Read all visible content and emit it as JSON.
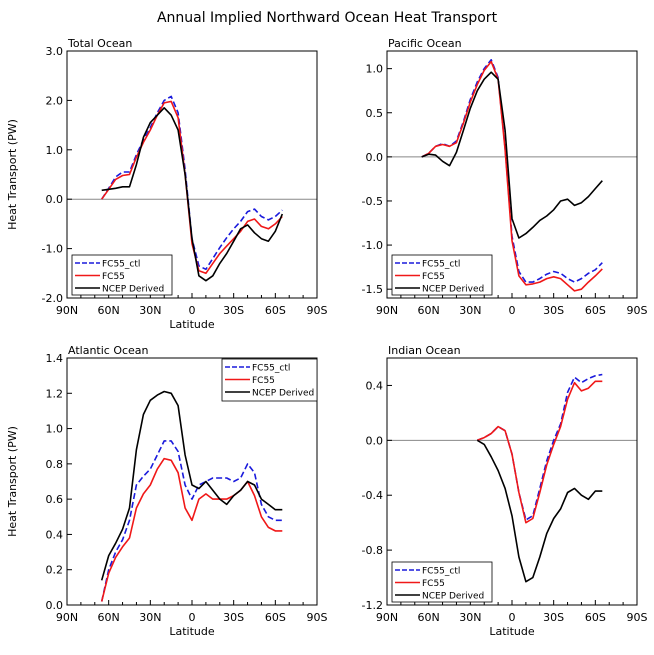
{
  "figure_title": "Annual Implied Northward Ocean Heat Transport",
  "colors": {
    "ctl": "#1a1adc",
    "fc55": "#f01818",
    "ncep": "#000000",
    "zero": "#888888"
  },
  "chart_data": [
    {
      "type": "line",
      "title": "Total Ocean",
      "xlabel": "Latitude",
      "ylabel": "Heat Transport (PW)",
      "xlim": [
        90,
        -90
      ],
      "ylim": [
        -2.0,
        3.0
      ],
      "xticks": [
        90,
        60,
        30,
        0,
        -30,
        -60,
        -90
      ],
      "xtick_labels": [
        "90N",
        "60N",
        "30N",
        "0",
        "30S",
        "60S",
        "90S"
      ],
      "yticks": [
        -2.0,
        -1.0,
        0.0,
        1.0,
        2.0,
        3.0
      ],
      "ytick_labels": [
        "-2.0",
        "-1.0",
        "0.0",
        "1.0",
        "2.0",
        "3.0"
      ],
      "legend_labels": [
        "FC55_ctl",
        "FC55",
        "NCEP Derived"
      ],
      "legend_location": "bottom-left",
      "series": [
        {
          "name": "FC55_ctl",
          "style": "dashed",
          "color": "#1a1adc",
          "x": [
            65,
            60,
            55,
            50,
            45,
            40,
            35,
            30,
            25,
            20,
            15,
            10,
            5,
            0,
            -5,
            -10,
            -15,
            -20,
            -25,
            -30,
            -35,
            -40,
            -45,
            -50,
            -55,
            -60,
            -65
          ],
          "y": [
            0.0,
            0.22,
            0.45,
            0.55,
            0.55,
            0.9,
            1.2,
            1.45,
            1.75,
            2.0,
            2.08,
            1.75,
            0.6,
            -0.8,
            -1.35,
            -1.42,
            -1.2,
            -0.98,
            -0.78,
            -0.6,
            -0.45,
            -0.25,
            -0.2,
            -0.35,
            -0.42,
            -0.35,
            -0.22
          ]
        },
        {
          "name": "FC55",
          "style": "solid",
          "color": "#f01818",
          "x": [
            65,
            60,
            55,
            50,
            45,
            40,
            35,
            30,
            25,
            20,
            15,
            10,
            5,
            0,
            -5,
            -10,
            -15,
            -20,
            -25,
            -30,
            -35,
            -40,
            -45,
            -50,
            -55,
            -60,
            -65
          ],
          "y": [
            0.0,
            0.2,
            0.4,
            0.48,
            0.5,
            0.85,
            1.15,
            1.4,
            1.7,
            1.95,
            1.98,
            1.65,
            0.5,
            -0.9,
            -1.45,
            -1.5,
            -1.3,
            -1.1,
            -0.95,
            -0.8,
            -0.65,
            -0.45,
            -0.4,
            -0.55,
            -0.6,
            -0.5,
            -0.35
          ]
        },
        {
          "name": "NCEP Derived",
          "style": "solid",
          "color": "#000000",
          "x": [
            65,
            60,
            55,
            50,
            45,
            40,
            35,
            30,
            25,
            20,
            15,
            10,
            5,
            0,
            -5,
            -10,
            -15,
            -20,
            -25,
            -30,
            -35,
            -40,
            -45,
            -50,
            -55,
            -60,
            -65
          ],
          "y": [
            0.18,
            0.2,
            0.22,
            0.25,
            0.25,
            0.7,
            1.25,
            1.55,
            1.7,
            1.85,
            1.7,
            1.4,
            0.5,
            -0.8,
            -1.55,
            -1.65,
            -1.55,
            -1.3,
            -1.1,
            -0.85,
            -0.6,
            -0.52,
            -0.68,
            -0.8,
            -0.85,
            -0.65,
            -0.3
          ]
        }
      ]
    },
    {
      "type": "line",
      "title": "Pacific Ocean",
      "xlabel": "",
      "ylabel": "",
      "xlim": [
        90,
        -90
      ],
      "ylim": [
        -1.6,
        1.2
      ],
      "xticks": [
        90,
        60,
        30,
        0,
        -30,
        -60,
        -90
      ],
      "xtick_labels": [
        "90N",
        "60N",
        "30N",
        "0",
        "30S",
        "60S",
        "90S"
      ],
      "yticks": [
        -1.5,
        -1.0,
        -0.5,
        0.0,
        0.5,
        1.0
      ],
      "ytick_labels": [
        "-1.5",
        "-1.0",
        "-0.5",
        "0.0",
        "0.5",
        "1.0"
      ],
      "legend_labels": [
        "FC55_ctl",
        "FC55",
        "NCEP Derived"
      ],
      "legend_location": "bottom-left",
      "series": [
        {
          "name": "FC55_ctl",
          "style": "dashed",
          "color": "#1a1adc",
          "x": [
            65,
            60,
            55,
            50,
            45,
            40,
            35,
            30,
            25,
            20,
            15,
            10,
            5,
            0,
            -5,
            -10,
            -15,
            -20,
            -25,
            -30,
            -35,
            -40,
            -45,
            -50,
            -55,
            -60,
            -65
          ],
          "y": [
            0.0,
            0.04,
            0.12,
            0.15,
            0.12,
            0.18,
            0.4,
            0.65,
            0.85,
            1.0,
            1.1,
            0.9,
            0.1,
            -0.9,
            -1.3,
            -1.42,
            -1.42,
            -1.38,
            -1.33,
            -1.3,
            -1.32,
            -1.38,
            -1.42,
            -1.38,
            -1.32,
            -1.28,
            -1.2
          ]
        },
        {
          "name": "FC55",
          "style": "solid",
          "color": "#f01818",
          "x": [
            65,
            60,
            55,
            50,
            45,
            40,
            35,
            30,
            25,
            20,
            15,
            10,
            5,
            0,
            -5,
            -10,
            -15,
            -20,
            -25,
            -30,
            -35,
            -40,
            -45,
            -50,
            -55,
            -60,
            -65
          ],
          "y": [
            0.0,
            0.04,
            0.12,
            0.14,
            0.12,
            0.16,
            0.38,
            0.62,
            0.82,
            0.98,
            1.08,
            0.88,
            0.08,
            -0.95,
            -1.35,
            -1.45,
            -1.44,
            -1.42,
            -1.38,
            -1.36,
            -1.38,
            -1.45,
            -1.52,
            -1.5,
            -1.42,
            -1.35,
            -1.27
          ]
        },
        {
          "name": "NCEP Derived",
          "style": "solid",
          "color": "#000000",
          "x": [
            65,
            60,
            55,
            50,
            45,
            40,
            35,
            30,
            25,
            20,
            15,
            10,
            5,
            0,
            -5,
            -10,
            -15,
            -20,
            -25,
            -30,
            -35,
            -40,
            -45,
            -50,
            -55,
            -60,
            -65
          ],
          "y": [
            0.0,
            0.03,
            0.02,
            -0.05,
            -0.1,
            0.05,
            0.3,
            0.55,
            0.75,
            0.88,
            0.96,
            0.88,
            0.3,
            -0.7,
            -0.92,
            -0.87,
            -0.8,
            -0.72,
            -0.67,
            -0.6,
            -0.5,
            -0.48,
            -0.55,
            -0.52,
            -0.45,
            -0.36,
            -0.27
          ]
        }
      ]
    },
    {
      "type": "line",
      "title": "Atlantic Ocean",
      "xlabel": "Latitude",
      "ylabel": "Heat Transport (PW)",
      "xlim": [
        90,
        -90
      ],
      "ylim": [
        0.0,
        1.4
      ],
      "xticks": [
        90,
        60,
        30,
        0,
        -30,
        -60,
        -90
      ],
      "xtick_labels": [
        "90N",
        "60N",
        "30N",
        "0",
        "30S",
        "60S",
        "90S"
      ],
      "yticks": [
        0.0,
        0.2,
        0.4,
        0.6,
        0.8,
        1.0,
        1.2,
        1.4
      ],
      "ytick_labels": [
        "0.0",
        "0.2",
        "0.4",
        "0.6",
        "0.8",
        "1.0",
        "1.2",
        "1.4"
      ],
      "legend_labels": [
        "FC55_ctl",
        "FC55",
        "NCEP Derived"
      ],
      "legend_location": "top-right",
      "series": [
        {
          "name": "FC55_ctl",
          "style": "dashed",
          "color": "#1a1adc",
          "x": [
            65,
            60,
            55,
            50,
            45,
            40,
            35,
            30,
            25,
            20,
            15,
            10,
            5,
            0,
            -5,
            -10,
            -15,
            -20,
            -25,
            -30,
            -35,
            -40,
            -45,
            -50,
            -55,
            -60,
            -65
          ],
          "y": [
            0.02,
            0.2,
            0.3,
            0.37,
            0.48,
            0.68,
            0.73,
            0.77,
            0.85,
            0.93,
            0.93,
            0.87,
            0.68,
            0.6,
            0.68,
            0.7,
            0.72,
            0.72,
            0.72,
            0.7,
            0.72,
            0.8,
            0.75,
            0.57,
            0.5,
            0.48,
            0.48
          ]
        },
        {
          "name": "FC55",
          "style": "solid",
          "color": "#f01818",
          "x": [
            65,
            60,
            55,
            50,
            45,
            40,
            35,
            30,
            25,
            20,
            15,
            10,
            5,
            0,
            -5,
            -10,
            -15,
            -20,
            -25,
            -30,
            -35,
            -40,
            -45,
            -50,
            -55,
            -60,
            -65
          ],
          "y": [
            0.02,
            0.18,
            0.27,
            0.33,
            0.38,
            0.55,
            0.63,
            0.68,
            0.77,
            0.83,
            0.82,
            0.75,
            0.55,
            0.48,
            0.6,
            0.63,
            0.6,
            0.6,
            0.6,
            0.62,
            0.65,
            0.7,
            0.62,
            0.5,
            0.44,
            0.42,
            0.42
          ]
        },
        {
          "name": "NCEP Derived",
          "style": "solid",
          "color": "#000000",
          "x": [
            65,
            60,
            55,
            50,
            45,
            40,
            35,
            30,
            25,
            20,
            15,
            10,
            5,
            0,
            -5,
            -10,
            -15,
            -20,
            -25,
            -30,
            -35,
            -40,
            -45,
            -50,
            -55,
            -60,
            -65
          ],
          "y": [
            0.14,
            0.28,
            0.35,
            0.43,
            0.55,
            0.88,
            1.08,
            1.16,
            1.19,
            1.21,
            1.2,
            1.13,
            0.85,
            0.68,
            0.66,
            0.7,
            0.65,
            0.6,
            0.57,
            0.62,
            0.65,
            0.7,
            0.68,
            0.6,
            0.57,
            0.54,
            0.54
          ]
        }
      ]
    },
    {
      "type": "line",
      "title": "Indian Ocean",
      "xlabel": "Latitude",
      "ylabel": "",
      "xlim": [
        90,
        -90
      ],
      "ylim": [
        -1.2,
        0.6
      ],
      "xticks": [
        90,
        60,
        30,
        0,
        -30,
        -60,
        -90
      ],
      "xtick_labels": [
        "90N",
        "60N",
        "30N",
        "0",
        "30S",
        "60S",
        "90S"
      ],
      "yticks": [
        -1.2,
        -0.8,
        -0.4,
        0.0,
        0.4
      ],
      "ytick_labels": [
        "-1.2",
        "-0.8",
        "-0.4",
        "0.0",
        "0.4"
      ],
      "legend_labels": [
        "FC55_ctl",
        "FC55",
        "NCEP Derived"
      ],
      "legend_location": "bottom-left",
      "series": [
        {
          "name": "FC55_ctl",
          "style": "dashed",
          "color": "#1a1adc",
          "x": [
            25,
            20,
            15,
            10,
            5,
            0,
            -5,
            -10,
            -15,
            -20,
            -25,
            -30,
            -35,
            -40,
            -45,
            -50,
            -55,
            -60,
            -65
          ],
          "y": [
            0.0,
            0.02,
            0.05,
            0.1,
            0.07,
            -0.1,
            -0.38,
            -0.58,
            -0.55,
            -0.35,
            -0.15,
            0.0,
            0.12,
            0.35,
            0.46,
            0.42,
            0.45,
            0.47,
            0.48
          ]
        },
        {
          "name": "FC55",
          "style": "solid",
          "color": "#f01818",
          "x": [
            25,
            20,
            15,
            10,
            5,
            0,
            -5,
            -10,
            -15,
            -20,
            -25,
            -30,
            -35,
            -40,
            -45,
            -50,
            -55,
            -60,
            -65
          ],
          "y": [
            0.0,
            0.02,
            0.05,
            0.1,
            0.07,
            -0.1,
            -0.38,
            -0.6,
            -0.57,
            -0.38,
            -0.18,
            -0.03,
            0.1,
            0.3,
            0.42,
            0.36,
            0.38,
            0.43,
            0.43
          ]
        },
        {
          "name": "NCEP Derived",
          "style": "solid",
          "color": "#000000",
          "x": [
            25,
            20,
            15,
            10,
            5,
            0,
            -5,
            -10,
            -15,
            -20,
            -25,
            -30,
            -35,
            -40,
            -45,
            -50,
            -55,
            -60,
            -65
          ],
          "y": [
            0.0,
            -0.03,
            -0.12,
            -0.22,
            -0.35,
            -0.55,
            -0.85,
            -1.03,
            -1.0,
            -0.85,
            -0.68,
            -0.57,
            -0.5,
            -0.38,
            -0.35,
            -0.4,
            -0.43,
            -0.37,
            -0.37
          ]
        }
      ]
    }
  ]
}
